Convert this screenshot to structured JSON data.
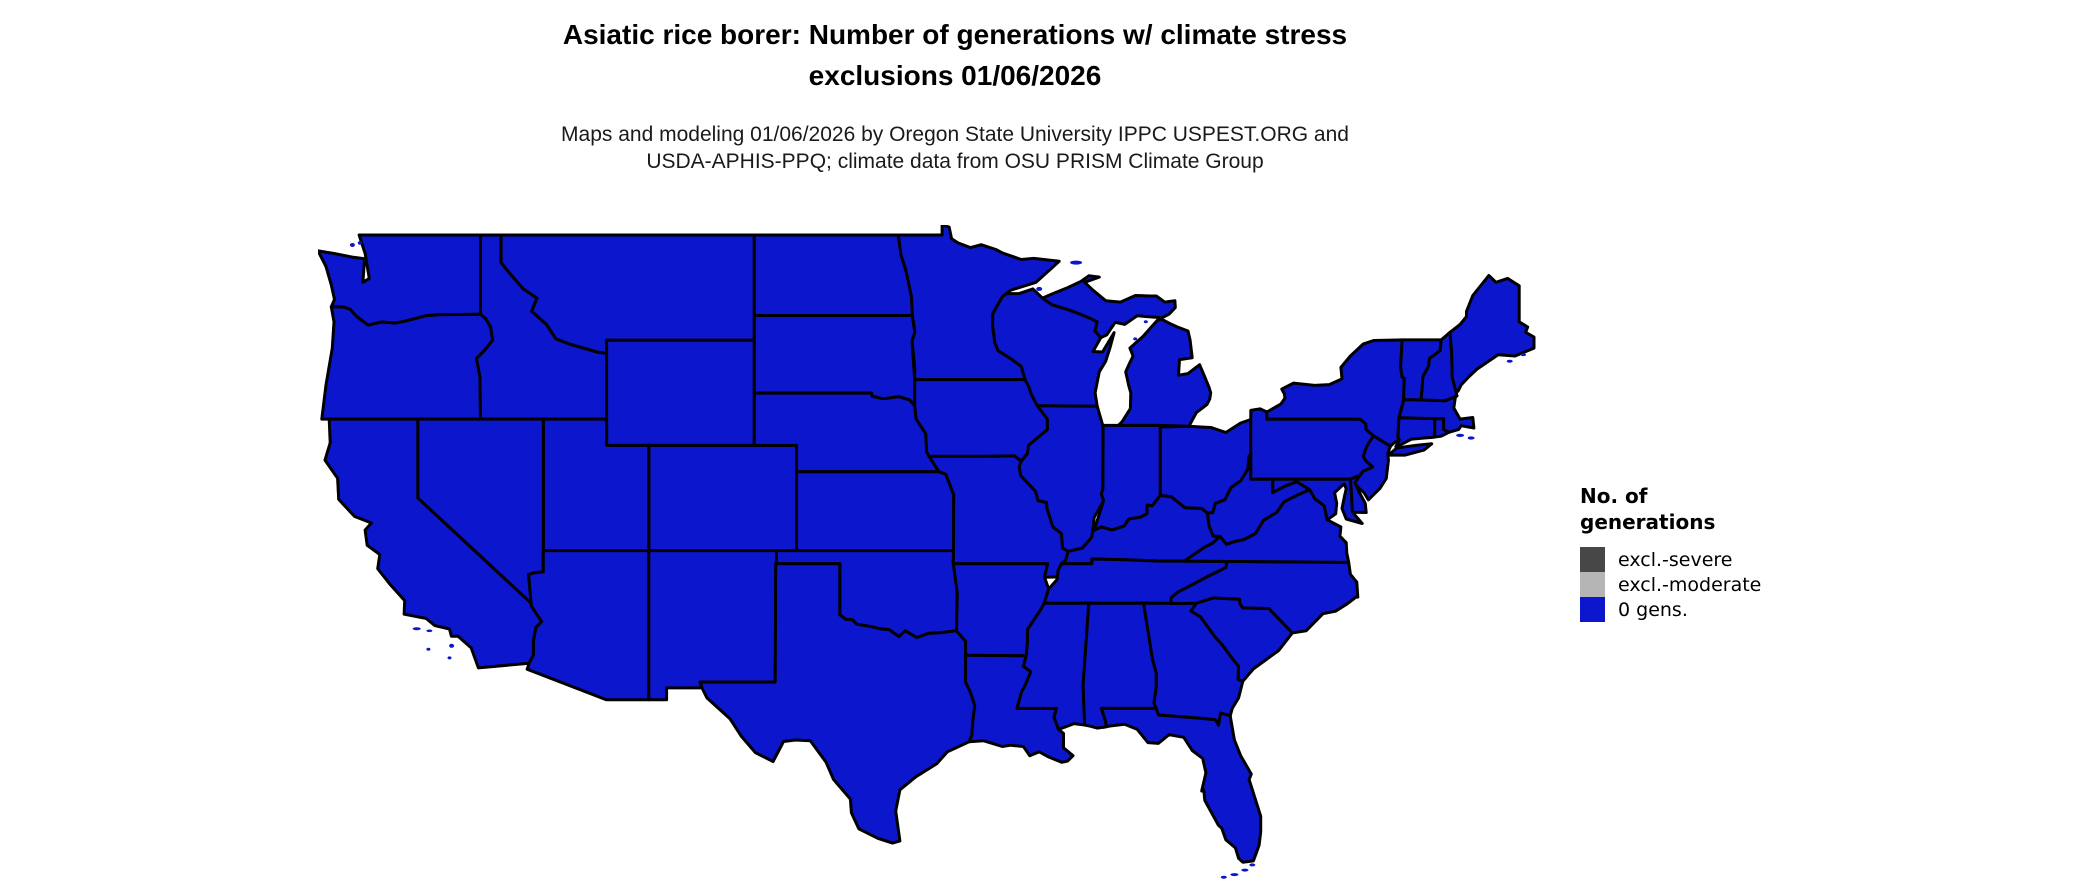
{
  "page": {
    "background": "#ffffff"
  },
  "header": {
    "title_line1": "Asiatic rice borer: Number of generations w/ climate stress",
    "title_line2": "exclusions 01/06/2026",
    "subtitle_line1": "Maps and modeling 01/06/2026 by Oregon State University IPPC USPEST.ORG and",
    "subtitle_line2": "USDA-APHIS-PPQ; climate data from OSU PRISM Climate Group"
  },
  "legend": {
    "title_line1": "No. of",
    "title_line2": "generations",
    "items": [
      {
        "label": "excl.-severe",
        "color": "#474747"
      },
      {
        "label": "excl.-moderate",
        "color": "#b5b5b5"
      },
      {
        "label": "0 gens.",
        "color": "#0c17cd"
      }
    ]
  },
  "map": {
    "region_label": "contiguous United States with state boundaries",
    "fill_color": "#0c17cd",
    "border_color": "#000000",
    "border_width": 3
  },
  "chart_data": {
    "type": "choropleth-map",
    "title": "Asiatic rice borer: Number of generations w/ climate stress exclusions 01/06/2026",
    "region": "Contiguous United States (state outlines)",
    "legend_title": "No. of generations",
    "classes": [
      {
        "label": "excl.-severe",
        "color": "#474747"
      },
      {
        "label": "excl.-moderate",
        "color": "#b5b5b5"
      },
      {
        "label": "0 gens.",
        "color": "#0c17cd"
      }
    ],
    "values": "entire mapped area rendered in the 0 gens. class (blue)",
    "legend_position": "right"
  }
}
